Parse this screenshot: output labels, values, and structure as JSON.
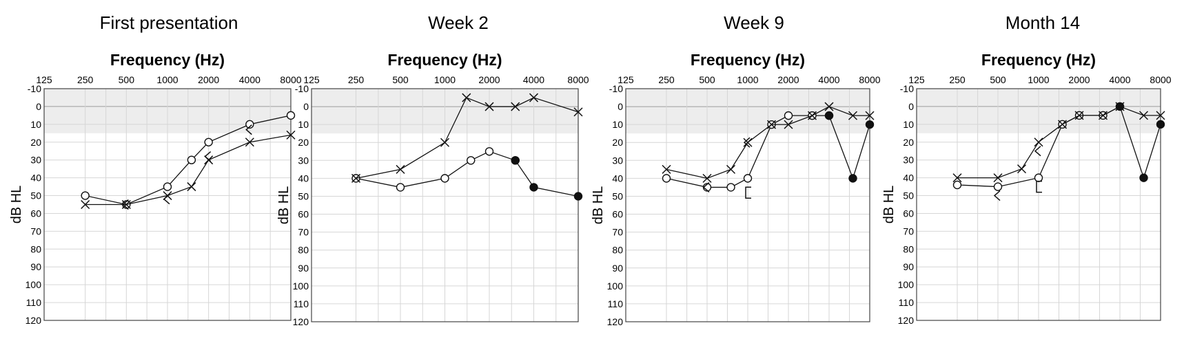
{
  "chart_data": [
    {
      "type": "line",
      "title": "First presentation",
      "xlabel": "Frequency (Hz)",
      "ylabel": "dB HL",
      "x_tick_labels": [
        "125",
        "250",
        "500",
        "1000",
        "2000",
        "4000",
        "8000"
      ],
      "y_tick_labels": [
        "-10",
        "0",
        "10",
        "20",
        "30",
        "40",
        "50",
        "60",
        "70",
        "80",
        "90",
        "100",
        "110",
        "120"
      ],
      "ylim": [
        -10,
        120
      ],
      "normal_range_db": [
        -10,
        15
      ],
      "series": [
        {
          "marker": "circle",
          "points": [
            [
              250,
              50
            ],
            [
              500,
              55
            ],
            [
              1000,
              45
            ],
            [
              1500,
              30
            ],
            [
              2000,
              20
            ],
            [
              4000,
              10
            ],
            [
              8000,
              5
            ]
          ]
        },
        {
          "marker": "cross",
          "points": [
            [
              250,
              55
            ],
            [
              500,
              55
            ],
            [
              1000,
              50
            ],
            [
              1500,
              45
            ],
            [
              2000,
              30
            ],
            [
              4000,
              20
            ],
            [
              8000,
              16
            ]
          ]
        },
        {
          "marker": "bracket",
          "points": [
            [
              500,
              55
            ],
            [
              1000,
              52
            ],
            [
              2000,
              28
            ],
            [
              4000,
              13
            ]
          ]
        }
      ]
    },
    {
      "type": "line",
      "title": "Week 2",
      "xlabel": "Frequency (Hz)",
      "ylabel": "dB HL",
      "x_tick_labels": [
        "125",
        "250",
        "500",
        "1000",
        "2000",
        "4000",
        "8000"
      ],
      "y_tick_labels": [
        "-10",
        "0",
        "10",
        "20",
        "30",
        "40",
        "50",
        "60",
        "70",
        "80",
        "90",
        "100",
        "110",
        "120"
      ],
      "ylim": [
        -10,
        120
      ],
      "normal_range_db": [
        -10,
        15
      ],
      "series": [
        {
          "marker": "circle",
          "points": [
            [
              250,
              40
            ],
            [
              500,
              45
            ],
            [
              1000,
              40
            ],
            [
              1500,
              30
            ],
            [
              2000,
              25
            ],
            [
              3000,
              30
            ]
          ]
        },
        {
          "marker": "filled-circle",
          "points": [
            [
              3000,
              30
            ],
            [
              4000,
              45
            ],
            [
              8000,
              50
            ]
          ]
        },
        {
          "marker": "cross",
          "points": [
            [
              250,
              40
            ],
            [
              500,
              35
            ],
            [
              1000,
              20
            ],
            [
              1400,
              -5
            ],
            [
              2000,
              0
            ],
            [
              3000,
              0
            ],
            [
              4000,
              -5
            ],
            [
              8000,
              3
            ]
          ]
        }
      ]
    },
    {
      "type": "line",
      "title": "Week 9",
      "xlabel": "Frequency (Hz)",
      "ylabel": "dB HL",
      "x_tick_labels": [
        "125",
        "250",
        "500",
        "1000",
        "2000",
        "4000",
        "8000"
      ],
      "y_tick_labels": [
        "-10",
        "0",
        "10",
        "20",
        "30",
        "40",
        "50",
        "60",
        "70",
        "80",
        "90",
        "100",
        "110",
        "120"
      ],
      "ylim": [
        -10,
        120
      ],
      "normal_range_db": [
        -10,
        15
      ],
      "series": [
        {
          "marker": "circle",
          "points": [
            [
              250,
              40
            ],
            [
              500,
              45
            ],
            [
              750,
              45
            ],
            [
              1000,
              40
            ],
            [
              1500,
              10
            ],
            [
              2000,
              5
            ],
            [
              3000,
              5
            ],
            [
              4000,
              5
            ]
          ]
        },
        {
          "marker": "filled-circle",
          "points": [
            [
              4000,
              5
            ],
            [
              6000,
              40
            ],
            [
              8000,
              10
            ]
          ]
        },
        {
          "marker": "cross",
          "points": [
            [
              250,
              35
            ],
            [
              500,
              40
            ],
            [
              750,
              35
            ],
            [
              1000,
              20
            ],
            [
              1500,
              10
            ],
            [
              2000,
              10
            ],
            [
              3000,
              5
            ],
            [
              4000,
              0
            ],
            [
              6000,
              5
            ],
            [
              8000,
              5
            ]
          ]
        },
        {
          "marker": "bracket",
          "points": [
            [
              500,
              45
            ],
            [
              1000,
              20
            ]
          ]
        },
        {
          "marker": "square-bracket",
          "points": [
            [
              1000,
              48
            ]
          ]
        }
      ]
    },
    {
      "type": "line",
      "title": "Month 14",
      "xlabel": "Frequency (Hz)",
      "ylabel": "dB HL",
      "x_tick_labels": [
        "125",
        "250",
        "500",
        "1000",
        "2000",
        "4000",
        "8000"
      ],
      "y_tick_labels": [
        "-10",
        "0",
        "10",
        "20",
        "30",
        "40",
        "50",
        "60",
        "70",
        "80",
        "90",
        "100",
        "110",
        "120"
      ],
      "ylim": [
        -10,
        120
      ],
      "normal_range_db": [
        -10,
        15
      ],
      "series": [
        {
          "marker": "circle",
          "points": [
            [
              250,
              44
            ],
            [
              500,
              45
            ],
            [
              1000,
              40
            ],
            [
              1500,
              10
            ],
            [
              2000,
              5
            ],
            [
              3000,
              5
            ],
            [
              4000,
              0
            ]
          ]
        },
        {
          "marker": "filled-circle",
          "points": [
            [
              4000,
              0
            ],
            [
              6000,
              40
            ],
            [
              8000,
              10
            ]
          ]
        },
        {
          "marker": "cross",
          "points": [
            [
              250,
              40
            ],
            [
              500,
              40
            ],
            [
              750,
              35
            ],
            [
              1000,
              20
            ],
            [
              1500,
              10
            ],
            [
              2000,
              5
            ],
            [
              3000,
              5
            ],
            [
              4000,
              0
            ],
            [
              6000,
              5
            ],
            [
              8000,
              5
            ]
          ]
        },
        {
          "marker": "bracket",
          "points": [
            [
              500,
              50
            ],
            [
              1000,
              25
            ]
          ]
        },
        {
          "marker": "square-bracket",
          "points": [
            [
              1000,
              45
            ]
          ]
        }
      ]
    }
  ]
}
